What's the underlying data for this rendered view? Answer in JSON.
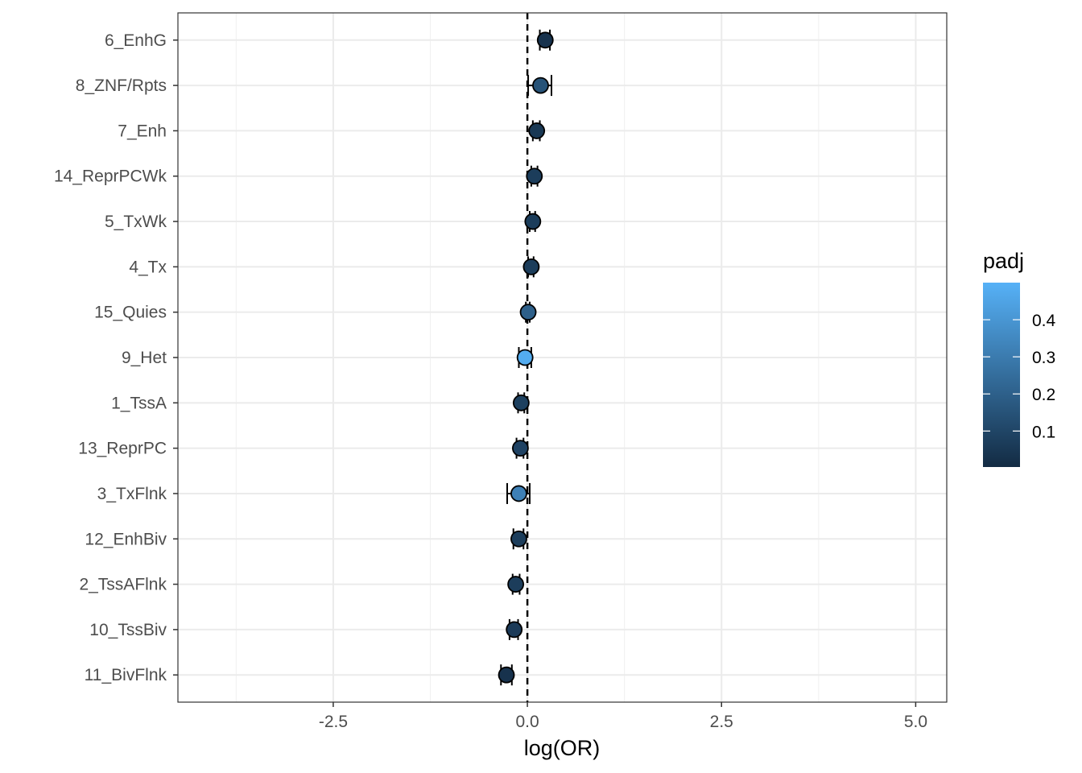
{
  "chart_data": {
    "type": "scatter",
    "subtype": "forest-plot",
    "xlabel": "log(OR)",
    "ylabel": "",
    "xlim": [
      -4.5,
      5.4
    ],
    "x_ticks": [
      -2.5,
      0.0,
      2.5,
      5.0
    ],
    "x_tick_labels": [
      "-2.5",
      "0.0",
      "2.5",
      "5.0"
    ],
    "reference_line": {
      "x": 0,
      "style": "dashed"
    },
    "grid": true,
    "categories": [
      "6_EnhG",
      "8_ZNF/Rpts",
      "7_Enh",
      "14_ReprPCWk",
      "5_TxWk",
      "4_Tx",
      "15_Quies",
      "9_Het",
      "1_TssA",
      "13_ReprPC",
      "3_TxFlnk",
      "12_EnhBiv",
      "2_TssAFlnk",
      "10_TssBiv",
      "11_BivFlnk"
    ],
    "points": [
      {
        "label": "6_EnhG",
        "est": 0.23,
        "lo": 0.16,
        "hi": 0.29,
        "padj": 0.03
      },
      {
        "label": "8_ZNF/Rpts",
        "est": 0.17,
        "lo": 0.01,
        "hi": 0.31,
        "padj": 0.15
      },
      {
        "label": "7_Enh",
        "est": 0.12,
        "lo": 0.07,
        "hi": 0.16,
        "padj": 0.05
      },
      {
        "label": "14_ReprPCWk",
        "est": 0.09,
        "lo": 0.05,
        "hi": 0.13,
        "padj": 0.07
      },
      {
        "label": "5_TxWk",
        "est": 0.07,
        "lo": 0.03,
        "hi": 0.1,
        "padj": 0.07
      },
      {
        "label": "4_Tx",
        "est": 0.05,
        "lo": 0.01,
        "hi": 0.08,
        "padj": 0.07
      },
      {
        "label": "15_Quies",
        "est": 0.01,
        "lo": -0.02,
        "hi": 0.03,
        "padj": 0.2
      },
      {
        "label": "9_Het",
        "est": -0.03,
        "lo": -0.11,
        "hi": 0.05,
        "padj": 0.48
      },
      {
        "label": "1_TssA",
        "est": -0.08,
        "lo": -0.12,
        "hi": -0.04,
        "padj": 0.08
      },
      {
        "label": "13_ReprPC",
        "est": -0.09,
        "lo": -0.14,
        "hi": -0.05,
        "padj": 0.09
      },
      {
        "label": "3_TxFlnk",
        "est": -0.11,
        "lo": -0.26,
        "hi": 0.03,
        "padj": 0.32
      },
      {
        "label": "12_EnhBiv",
        "est": -0.11,
        "lo": -0.18,
        "hi": -0.05,
        "padj": 0.07
      },
      {
        "label": "2_TssAFlnk",
        "est": -0.15,
        "lo": -0.19,
        "hi": -0.1,
        "padj": 0.07
      },
      {
        "label": "10_TssBiv",
        "est": -0.17,
        "lo": -0.23,
        "hi": -0.12,
        "padj": 0.06
      },
      {
        "label": "11_BivFlnk",
        "est": -0.27,
        "lo": -0.34,
        "hi": -0.2,
        "padj": 0.03
      }
    ],
    "legend": {
      "title": "padj",
      "placement": "right",
      "type": "colorbar",
      "range": [
        0.003,
        0.5
      ],
      "ticks": [
        0.1,
        0.2,
        0.3,
        0.4
      ],
      "tick_labels": [
        "0.1",
        "0.2",
        "0.3",
        "0.4"
      ],
      "low_color": "#132b43",
      "high_color": "#56b1f7"
    }
  }
}
